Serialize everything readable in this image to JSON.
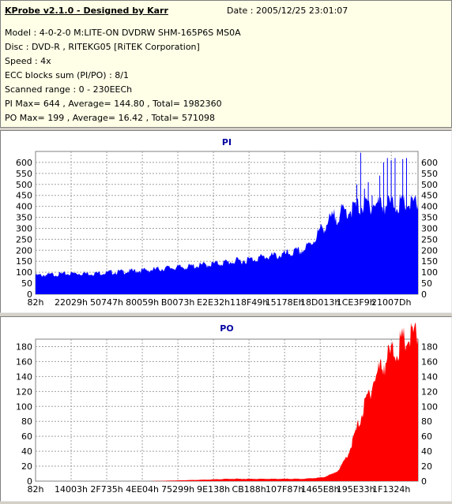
{
  "header": {
    "title": "KProbe v2.1.0 - Designed by Karr",
    "date": "Date : 2005/12/25 23:01:07",
    "model": "Model : 4-0-2-0 M:LITE-ON DVDRW SHM-165P6S MS0A",
    "disc": "Disc : DVD-R , RITEKG05 [RiTEK Corporation]",
    "speed": "Speed : 4x",
    "ecc": "ECC blocks sum (PI/PO) : 8/1",
    "range": "Scanned range : 0 - 230EECh",
    "pi_stats": "PI Max= 644 , Average= 144.80 , Total= 1982360",
    "po_stats": "PO Max= 199 , Average= 16.42 , Total= 571098"
  },
  "colors": {
    "pi": "#0000ff",
    "po": "#ff0000",
    "title": "#0000a0"
  },
  "chart_data": [
    {
      "type": "area",
      "title": "PI",
      "ylim": [
        0,
        650
      ],
      "yticks": [
        0,
        50,
        100,
        150,
        200,
        250,
        300,
        350,
        400,
        450,
        500,
        550,
        600
      ],
      "xticks": [
        "82h",
        "22029h",
        "50747h",
        "80059h",
        "B0073h",
        "E2E32h",
        "118F49h",
        "15178Eh",
        "18D013h",
        "1CE3F9h",
        "21007Dh"
      ],
      "x": [
        0,
        0.05,
        0.1,
        0.15,
        0.2,
        0.25,
        0.3,
        0.35,
        0.4,
        0.45,
        0.5,
        0.55,
        0.6,
        0.65,
        0.7,
        0.72,
        0.74,
        0.76,
        0.78,
        0.8,
        0.82,
        0.84,
        0.86,
        0.88,
        0.9,
        0.95,
        1.0
      ],
      "values": [
        85,
        90,
        95,
        95,
        100,
        105,
        110,
        120,
        125,
        135,
        145,
        155,
        170,
        180,
        200,
        230,
        280,
        320,
        350,
        370,
        385,
        395,
        405,
        410,
        410,
        410,
        410
      ],
      "spikes": [
        {
          "x": 0.84,
          "y": 500
        },
        {
          "x": 0.85,
          "y": 644
        },
        {
          "x": 0.86,
          "y": 480
        },
        {
          "x": 0.87,
          "y": 510
        },
        {
          "x": 0.88,
          "y": 450
        },
        {
          "x": 0.9,
          "y": 540
        },
        {
          "x": 0.91,
          "y": 600
        },
        {
          "x": 0.92,
          "y": 620
        },
        {
          "x": 0.93,
          "y": 610
        },
        {
          "x": 0.94,
          "y": 620
        },
        {
          "x": 0.96,
          "y": 615
        },
        {
          "x": 0.97,
          "y": 620
        }
      ],
      "grid": true
    },
    {
      "type": "area",
      "title": "PO",
      "ylim": [
        0,
        190
      ],
      "yticks": [
        0,
        20,
        40,
        60,
        80,
        100,
        120,
        140,
        160,
        180
      ],
      "xticks": [
        "82h",
        "14003h",
        "2F735h",
        "4EE04h",
        "75299h",
        "9E138h",
        "CB188h",
        "107F87h",
        "1465E8h",
        "195E33h",
        "1F1324h"
      ],
      "x": [
        0,
        0.3,
        0.45,
        0.5,
        0.6,
        0.7,
        0.75,
        0.78,
        0.8,
        0.82,
        0.84,
        0.86,
        0.88,
        0.9,
        0.92,
        0.94,
        0.96,
        0.98,
        1.0
      ],
      "values": [
        0,
        0,
        2,
        3,
        3,
        3,
        5,
        10,
        20,
        40,
        70,
        100,
        130,
        150,
        165,
        175,
        185,
        192,
        195
      ],
      "grid": true
    }
  ]
}
